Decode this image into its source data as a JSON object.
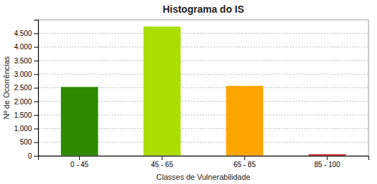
{
  "chart_data": {
    "type": "bar",
    "title": "Histograma do IS",
    "xlabel": "Classes de Vulnerabilidade",
    "ylabel": "Nº de Ocorrências",
    "categories": [
      "0 - 45",
      "45 - 65",
      "65 - 85",
      "85 - 100"
    ],
    "values": [
      2530,
      4750,
      2570,
      55
    ],
    "colors": [
      "#2E8B00",
      "#AADD00",
      "#FFA500",
      "#CC1111"
    ],
    "ylim": [
      0,
      5000
    ],
    "yticks": [
      0,
      500,
      {
        "value": 1000,
        "label": "1.000"
      },
      {
        "value": 1500,
        "label": "1.500"
      },
      {
        "value": 2000,
        "label": "2.000"
      },
      {
        "value": 2500,
        "label": "2.500"
      },
      {
        "value": 3000,
        "label": "3.000"
      },
      {
        "value": 3500,
        "label": "3.500"
      },
      {
        "value": 4000,
        "label": "4.000"
      },
      {
        "value": 4500,
        "label": "4.500"
      }
    ],
    "grid": true
  }
}
